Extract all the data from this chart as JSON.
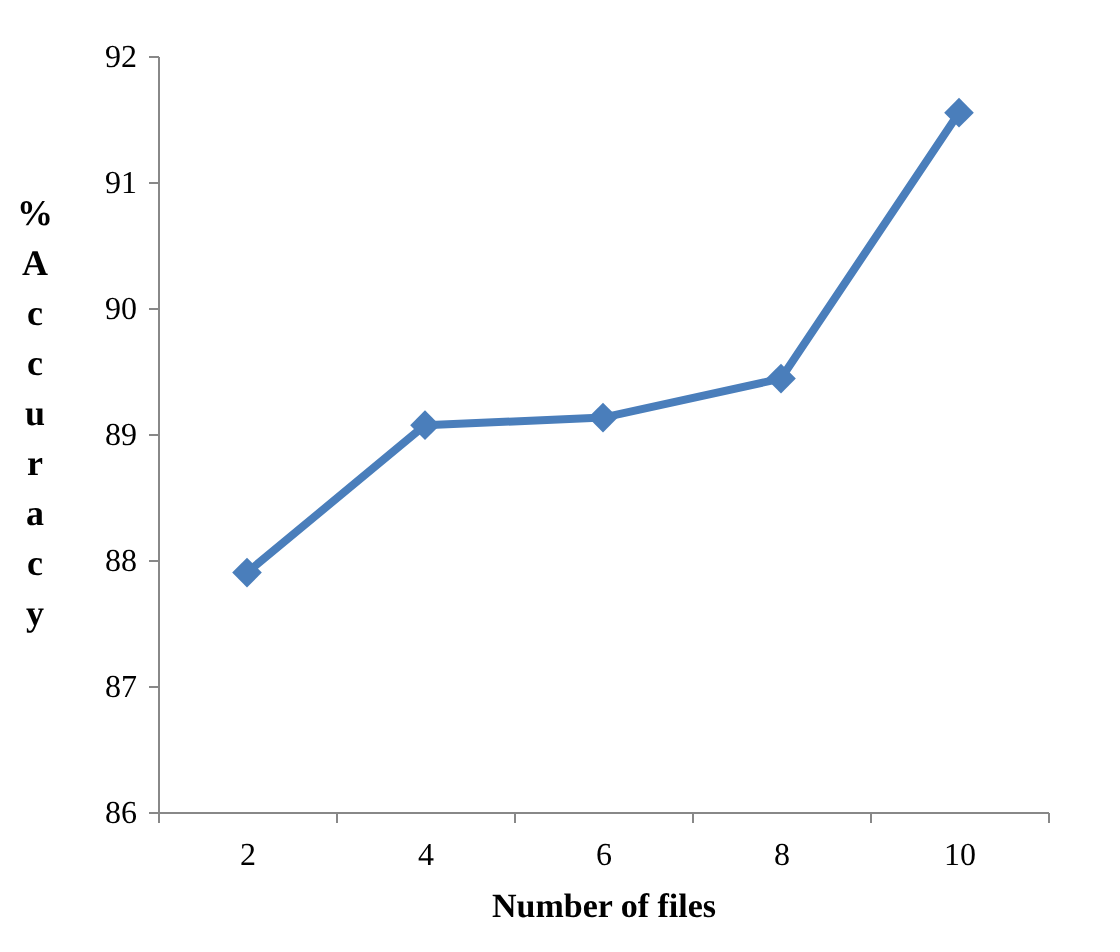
{
  "chart_data": {
    "type": "line",
    "xlabel": "Number of files",
    "ylabel": "% Accuracy",
    "categories": [
      "2",
      "4",
      "6",
      "8",
      "10"
    ],
    "series": [
      {
        "color": "#4a7ebb",
        "values": [
          87.9,
          89.07,
          89.13,
          89.44,
          91.55
        ]
      }
    ],
    "ylim": [
      86,
      92
    ],
    "yticks": [
      86,
      87,
      88,
      89,
      90,
      91,
      92
    ],
    "grid": false,
    "legend": false,
    "marker": "diamond",
    "line_style": "solid"
  }
}
